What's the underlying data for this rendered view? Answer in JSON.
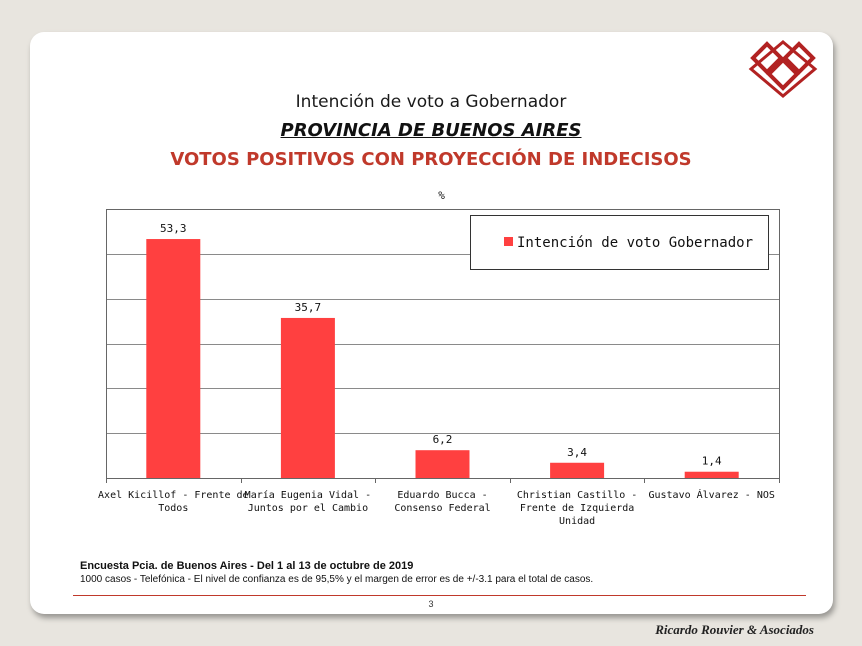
{
  "slide": {
    "title_line1": "Intención de voto a Gobernador",
    "title_line2": "PROVINCIA DE BUENOS AIRES",
    "title_line3": "VOTOS POSITIVOS CON PROYECCIÓN DE INDECISOS",
    "footnote_bold": "Encuesta Pcia. de Buenos Aires - Del 1 al 13 de octubre de 2019",
    "footnote_detail": "1000 casos - Telefónica  - El nivel de confianza es de 95,5% y el margen de error es de +/-3.1 para el total de casos.",
    "page_number": "3",
    "brand": "Ricardo Rouvier & Asociados",
    "accent_color": "#c0392b",
    "logo_icon": "diamond-logo-icon"
  },
  "chart_data": {
    "type": "bar",
    "title": "%",
    "categories": [
      [
        "Axel Kicillof - Frente de",
        "Todos"
      ],
      [
        "María Eugenia Vidal -",
        "Juntos por el Cambio"
      ],
      [
        "Eduardo Bucca -",
        "Consenso Federal"
      ],
      [
        "Christian Castillo -",
        "Frente de Izquierda",
        "Unidad"
      ],
      [
        "Gustavo Álvarez - NOS"
      ]
    ],
    "series": [
      {
        "name": "Intención de voto Gobernador",
        "values": [
          53.3,
          35.7,
          6.2,
          3.4,
          1.4
        ],
        "value_labels": [
          "53,3",
          "35,7",
          "6,2",
          "3,4",
          "1,4"
        ],
        "color": "#ff4040"
      }
    ],
    "ylim": [
      0,
      60
    ],
    "gridlines": [
      10,
      20,
      30,
      40,
      50
    ],
    "grid": true,
    "legend_position": "top-right"
  }
}
